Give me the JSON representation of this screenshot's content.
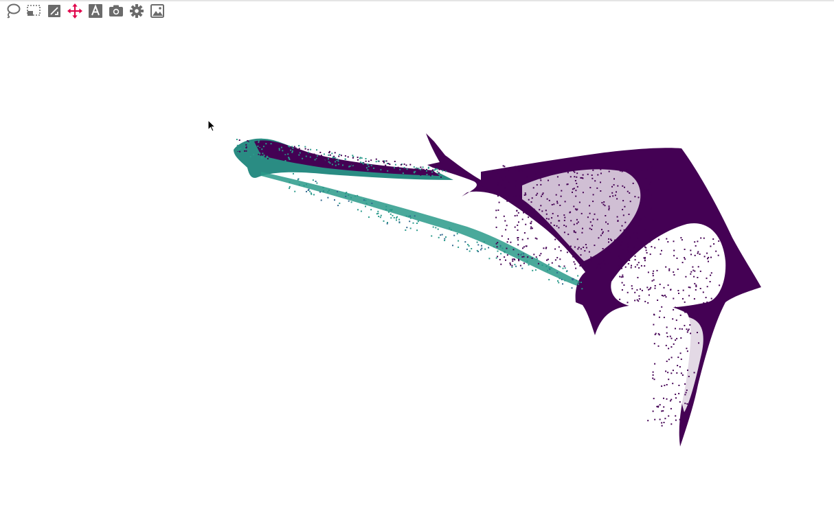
{
  "toolbar": {
    "tools": [
      {
        "name": "lasso-select",
        "icon": "lasso-icon",
        "active": false
      },
      {
        "name": "box-select",
        "icon": "box-select-icon",
        "active": false
      },
      {
        "name": "box-zoom",
        "icon": "box-zoom-icon",
        "active": false
      },
      {
        "name": "pan",
        "icon": "pan-icon",
        "active": true
      },
      {
        "name": "text-annotation",
        "icon": "text-a-icon",
        "active": false
      },
      {
        "name": "screenshot",
        "icon": "camera-icon",
        "active": false
      },
      {
        "name": "settings",
        "icon": "gear-icon",
        "active": false
      },
      {
        "name": "export-image",
        "icon": "image-icon",
        "active": false
      }
    ],
    "icon_color": "#6b6b6b",
    "active_color": "#e0064b"
  },
  "chart_data": {
    "type": "scatter",
    "title": "",
    "xlabel": "",
    "ylabel": "",
    "grid": false,
    "legend": "none",
    "colors": {
      "dominant": "#440154",
      "secondary": "#2a9a8a",
      "tertiary": "#31688e"
    }
  }
}
